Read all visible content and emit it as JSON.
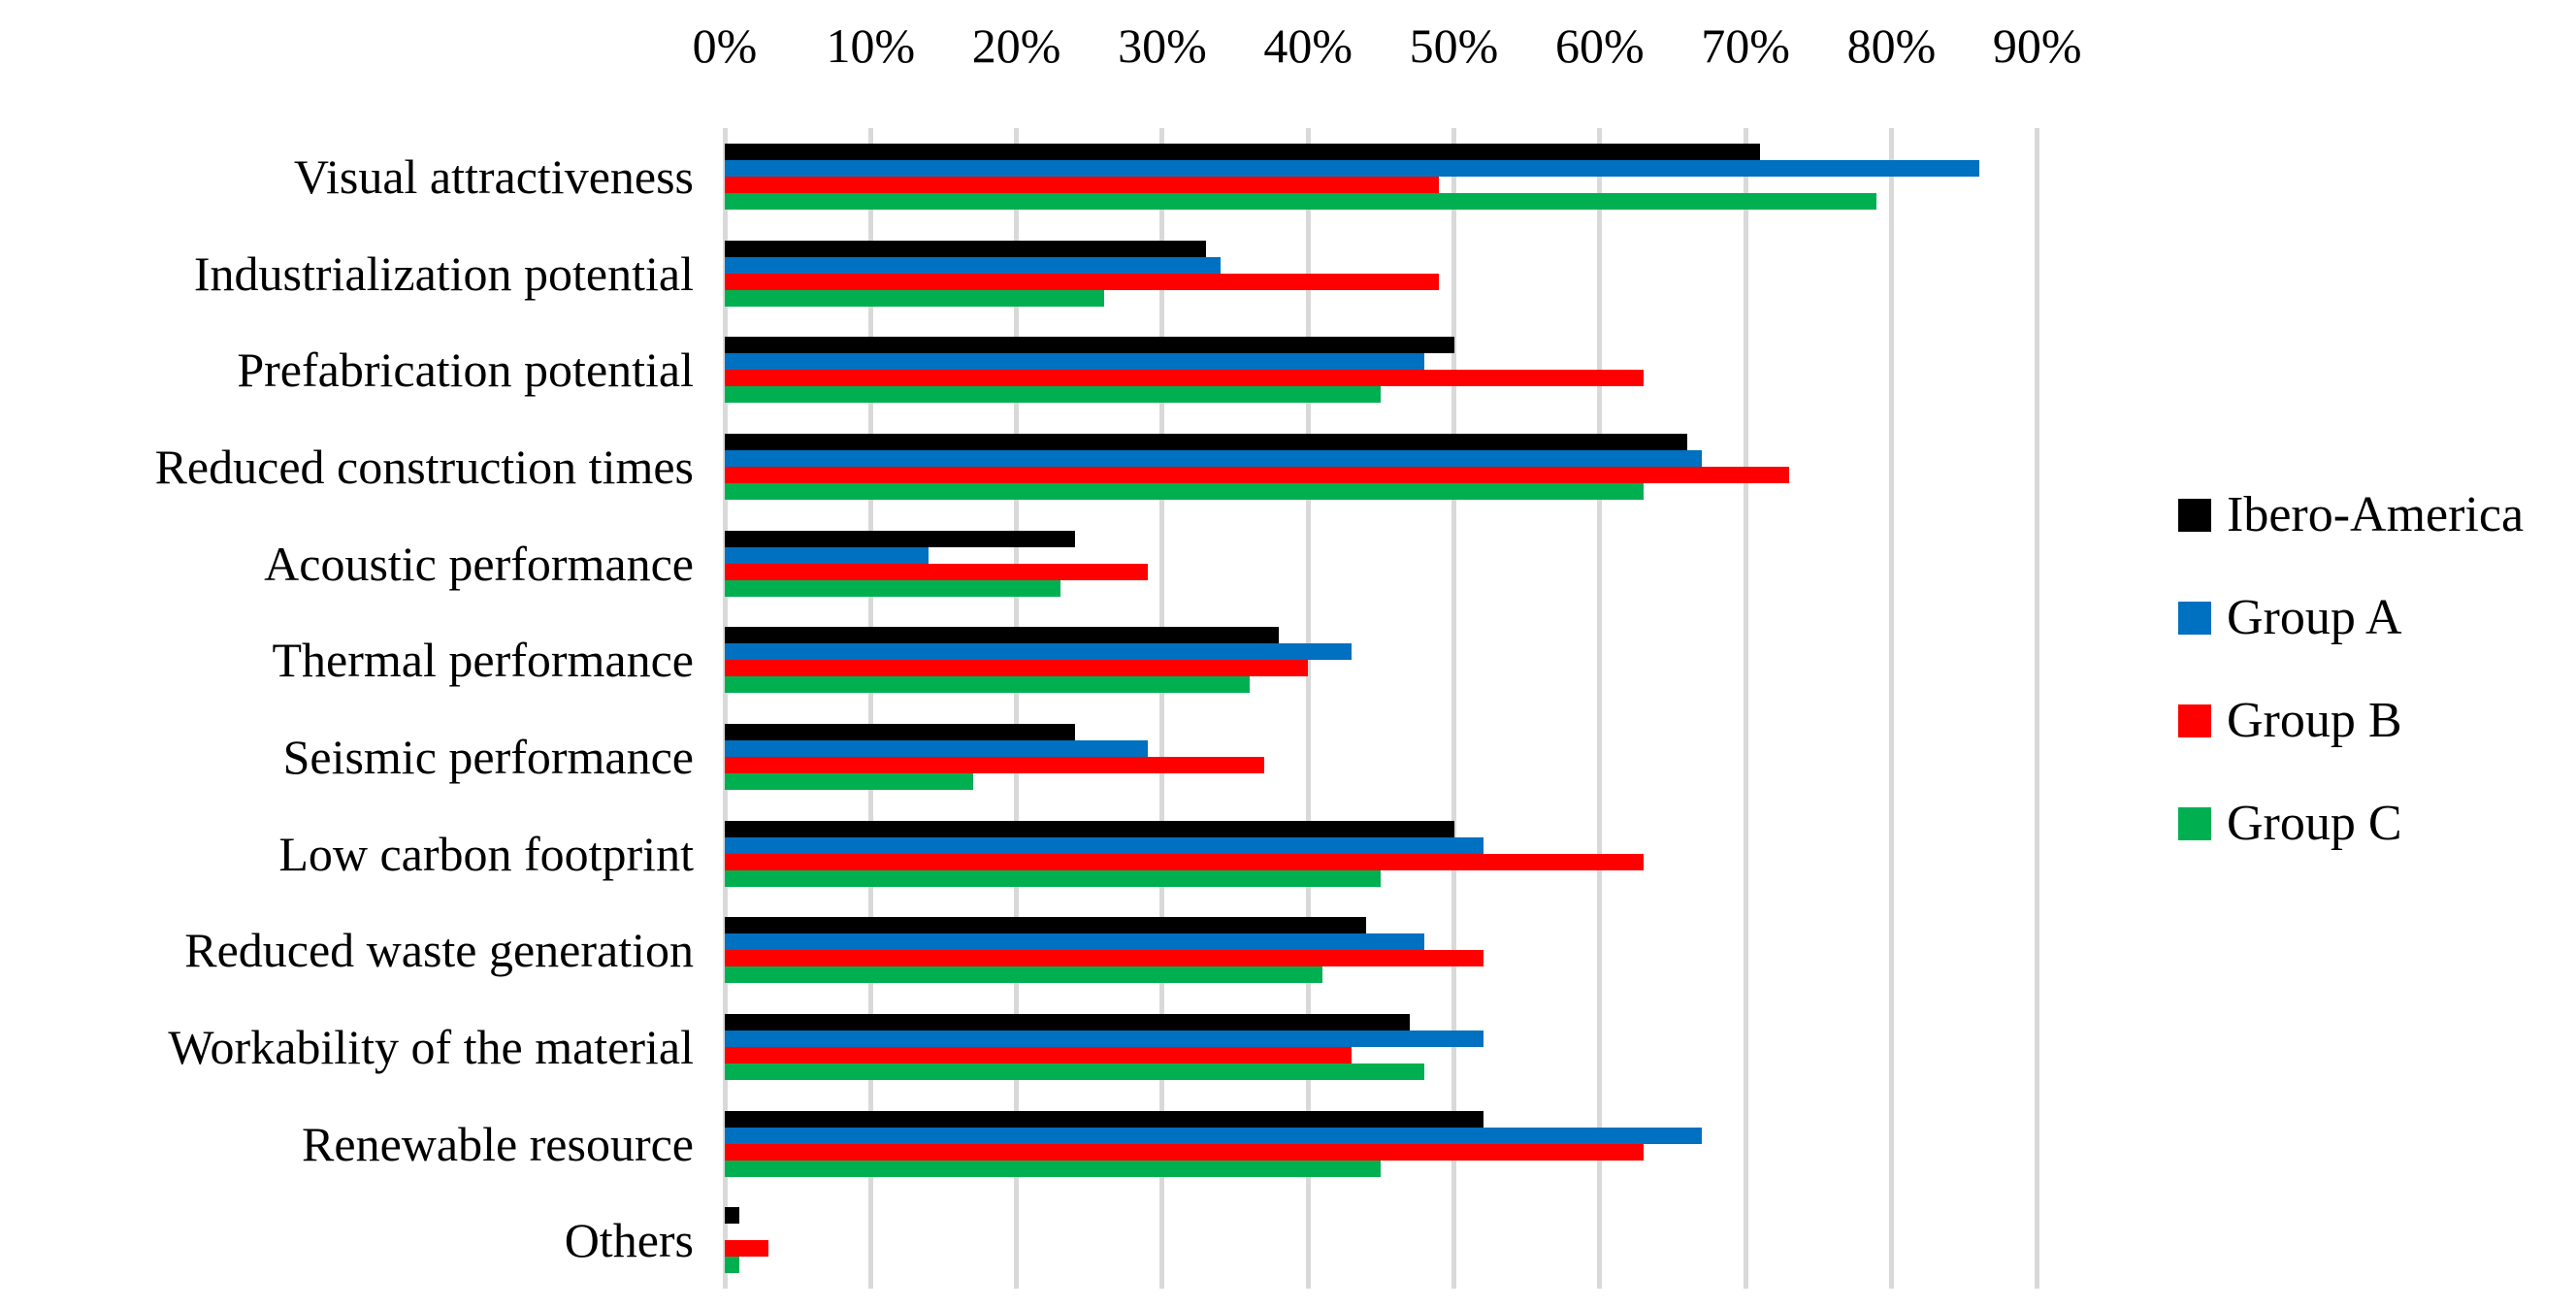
{
  "chart_data": {
    "type": "bar",
    "orientation": "horizontal",
    "title": "",
    "x_axis": {
      "position": "top",
      "min": 0,
      "max": 90,
      "tick_step": 10,
      "ticks": [
        "0%",
        "10%",
        "20%",
        "30%",
        "40%",
        "50%",
        "60%",
        "70%",
        "80%",
        "90%"
      ]
    },
    "grid": {
      "vertical_gridlines": true,
      "color": "#d9d9d9"
    },
    "categories": [
      "Visual attractiveness",
      "Industrialization potential",
      "Prefabrication potential",
      "Reduced construction times",
      "Acoustic performance",
      "Thermal performance",
      "Seismic performance",
      "Low carbon footprint",
      "Reduced waste generation",
      "Workability of the material",
      "Renewable resource",
      "Others"
    ],
    "series": [
      {
        "name": "Ibero-America",
        "color": "#000000",
        "values": [
          71,
          33,
          50,
          66,
          24,
          38,
          24,
          50,
          44,
          47,
          52,
          1
        ]
      },
      {
        "name": "Group A",
        "color": "#0070c0",
        "values": [
          86,
          34,
          48,
          67,
          14,
          43,
          29,
          52,
          48,
          52,
          67,
          0
        ]
      },
      {
        "name": "Group B",
        "color": "#ff0000",
        "values": [
          49,
          49,
          63,
          73,
          29,
          40,
          37,
          63,
          52,
          43,
          63,
          3
        ]
      },
      {
        "name": "Group C",
        "color": "#00b050",
        "values": [
          79,
          26,
          45,
          63,
          23,
          36,
          17,
          45,
          41,
          48,
          45,
          1
        ]
      }
    ],
    "legend": {
      "position": "right",
      "entries": [
        "Ibero-America",
        "Group A",
        "Group B",
        "Group C"
      ]
    }
  }
}
